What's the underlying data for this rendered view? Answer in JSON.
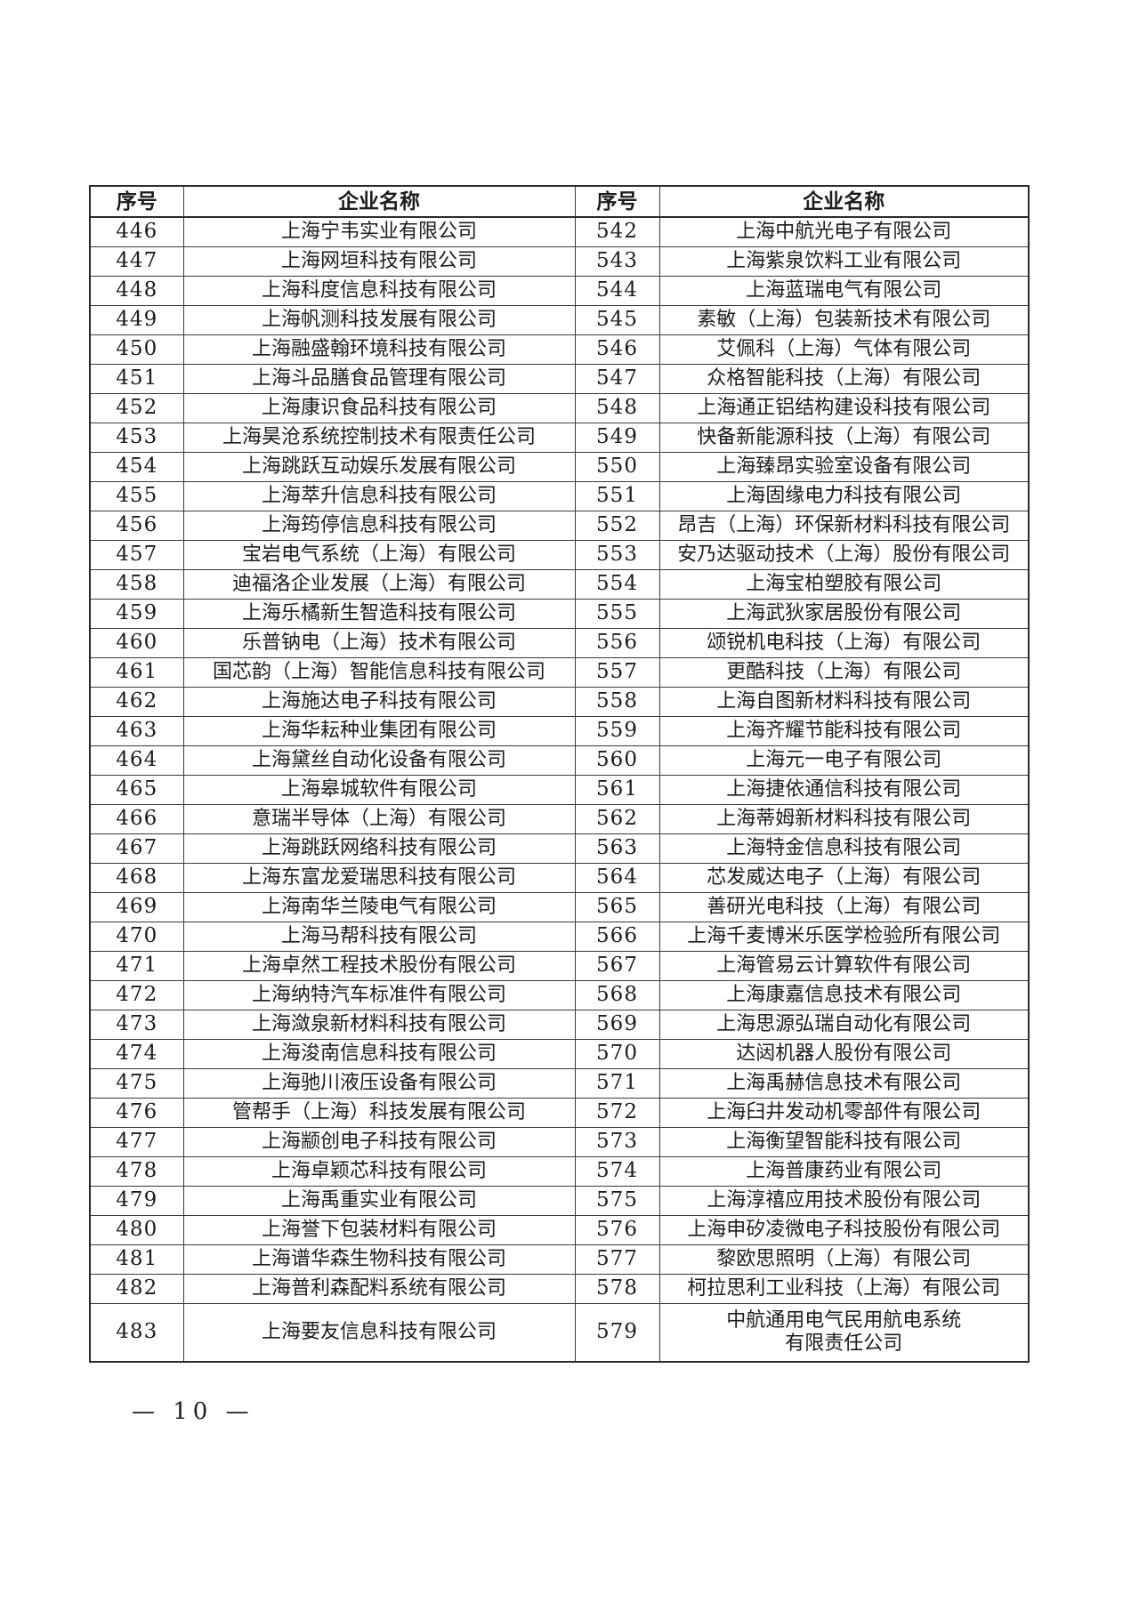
{
  "page": {
    "footer_page_number": "— 10 —"
  },
  "table": {
    "headers": {
      "index_label": "序号",
      "name_label": "企业名称"
    },
    "left_rows": [
      {
        "index": "446",
        "name": "上海宁韦实业有限公司"
      },
      {
        "index": "447",
        "name": "上海网垣科技有限公司"
      },
      {
        "index": "448",
        "name": "上海科度信息科技有限公司"
      },
      {
        "index": "449",
        "name": "上海帆测科技发展有限公司"
      },
      {
        "index": "450",
        "name": "上海融盛翰环境科技有限公司"
      },
      {
        "index": "451",
        "name": "上海斗品膳食品管理有限公司"
      },
      {
        "index": "452",
        "name": "上海康识食品科技有限公司"
      },
      {
        "index": "453",
        "name": "上海昊沧系统控制技术有限责任公司"
      },
      {
        "index": "454",
        "name": "上海跳跃互动娱乐发展有限公司"
      },
      {
        "index": "455",
        "name": "上海萃升信息科技有限公司"
      },
      {
        "index": "456",
        "name": "上海筠停信息科技有限公司"
      },
      {
        "index": "457",
        "name": "宝岩电气系统（上海）有限公司"
      },
      {
        "index": "458",
        "name": "迪福洛企业发展（上海）有限公司"
      },
      {
        "index": "459",
        "name": "上海乐橘新生智造科技有限公司"
      },
      {
        "index": "460",
        "name": "乐普钠电（上海）技术有限公司"
      },
      {
        "index": "461",
        "name": "国芯韵（上海）智能信息科技有限公司"
      },
      {
        "index": "462",
        "name": "上海施达电子科技有限公司"
      },
      {
        "index": "463",
        "name": "上海华耘种业集团有限公司"
      },
      {
        "index": "464",
        "name": "上海黛丝自动化设备有限公司"
      },
      {
        "index": "465",
        "name": "上海皋城软件有限公司"
      },
      {
        "index": "466",
        "name": "意瑞半导体（上海）有限公司"
      },
      {
        "index": "467",
        "name": "上海跳跃网络科技有限公司"
      },
      {
        "index": "468",
        "name": "上海东富龙爱瑞思科技有限公司"
      },
      {
        "index": "469",
        "name": "上海南华兰陵电气有限公司"
      },
      {
        "index": "470",
        "name": "上海马帮科技有限公司"
      },
      {
        "index": "471",
        "name": "上海卓然工程技术股份有限公司"
      },
      {
        "index": "472",
        "name": "上海纳特汽车标准件有限公司"
      },
      {
        "index": "473",
        "name": "上海潋泉新材料科技有限公司"
      },
      {
        "index": "474",
        "name": "上海浚南信息科技有限公司"
      },
      {
        "index": "475",
        "name": "上海驰川液压设备有限公司"
      },
      {
        "index": "476",
        "name": "管帮手（上海）科技发展有限公司"
      },
      {
        "index": "477",
        "name": "上海颛创电子科技有限公司"
      },
      {
        "index": "478",
        "name": "上海卓颖芯科技有限公司"
      },
      {
        "index": "479",
        "name": "上海禹重实业有限公司"
      },
      {
        "index": "480",
        "name": "上海誉下包装材料有限公司"
      },
      {
        "index": "481",
        "name": "上海谱华森生物科技有限公司"
      },
      {
        "index": "482",
        "name": "上海普利森配料系统有限公司"
      },
      {
        "index": "483",
        "name": "上海要友信息科技有限公司"
      }
    ],
    "right_rows": [
      {
        "index": "542",
        "name": "上海中航光电子有限公司"
      },
      {
        "index": "543",
        "name": "上海紫泉饮料工业有限公司"
      },
      {
        "index": "544",
        "name": "上海蓝瑞电气有限公司"
      },
      {
        "index": "545",
        "name": "素敏（上海）包装新技术有限公司"
      },
      {
        "index": "546",
        "name": "艾佩科（上海）气体有限公司"
      },
      {
        "index": "547",
        "name": "众格智能科技（上海）有限公司"
      },
      {
        "index": "548",
        "name": "上海通正铝结构建设科技有限公司"
      },
      {
        "index": "549",
        "name": "快备新能源科技（上海）有限公司"
      },
      {
        "index": "550",
        "name": "上海臻昂实验室设备有限公司"
      },
      {
        "index": "551",
        "name": "上海固缘电力科技有限公司"
      },
      {
        "index": "552",
        "name": "昂吉（上海）环保新材料科技有限公司"
      },
      {
        "index": "553",
        "name": "安乃达驱动技术（上海）股份有限公司"
      },
      {
        "index": "554",
        "name": "上海宝柏塑胶有限公司"
      },
      {
        "index": "555",
        "name": "上海武狄家居股份有限公司"
      },
      {
        "index": "556",
        "name": "颂锐机电科技（上海）有限公司"
      },
      {
        "index": "557",
        "name": "更酷科技（上海）有限公司"
      },
      {
        "index": "558",
        "name": "上海自图新材料科技有限公司"
      },
      {
        "index": "559",
        "name": "上海齐耀节能科技有限公司"
      },
      {
        "index": "560",
        "name": "上海元一电子有限公司"
      },
      {
        "index": "561",
        "name": "上海捷依通信科技有限公司"
      },
      {
        "index": "562",
        "name": "上海蒂姆新材料科技有限公司"
      },
      {
        "index": "563",
        "name": "上海特金信息科技有限公司"
      },
      {
        "index": "564",
        "name": "芯发威达电子（上海）有限公司"
      },
      {
        "index": "565",
        "name": "善研光电科技（上海）有限公司"
      },
      {
        "index": "566",
        "name": "上海千麦博米乐医学检验所有限公司"
      },
      {
        "index": "567",
        "name": "上海管易云计算软件有限公司"
      },
      {
        "index": "568",
        "name": "上海康嘉信息技术有限公司"
      },
      {
        "index": "569",
        "name": "上海思源弘瑞自动化有限公司"
      },
      {
        "index": "570",
        "name": "达闼机器人股份有限公司"
      },
      {
        "index": "571",
        "name": "上海禹赫信息技术有限公司"
      },
      {
        "index": "572",
        "name": "上海臼井发动机零部件有限公司"
      },
      {
        "index": "573",
        "name": "上海衡望智能科技有限公司"
      },
      {
        "index": "574",
        "name": "上海普康药业有限公司"
      },
      {
        "index": "575",
        "name": "上海淳禧应用技术股份有限公司"
      },
      {
        "index": "576",
        "name": "上海申矽凌微电子科技股份有限公司"
      },
      {
        "index": "577",
        "name": "黎欧思照明（上海）有限公司"
      },
      {
        "index": "578",
        "name": "柯拉思利工业科技（上海）有限公司"
      },
      {
        "index": "579",
        "name": "中航通用电气民用航电系统\n有限责任公司"
      }
    ]
  }
}
